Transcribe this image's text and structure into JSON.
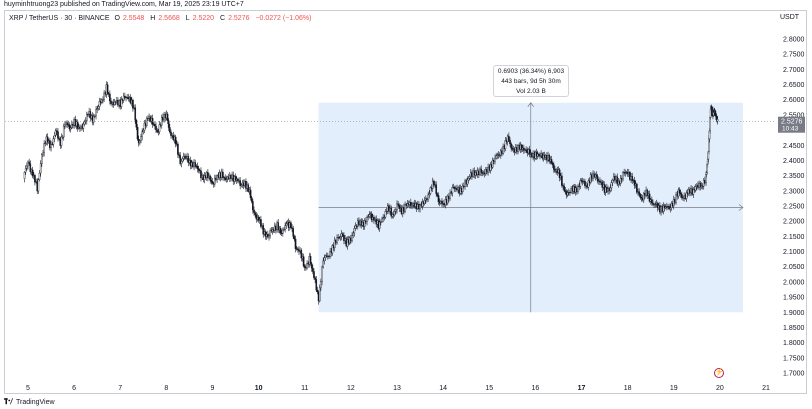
{
  "header": {
    "publish_line": "huyminhtruong23 published on TradingView.com, Mar 19, 2025 23:19 UTC+7"
  },
  "legend": {
    "symbol": "XRP / TetherUS · 30 · BINANCE",
    "open_key": "O",
    "open_val": "2.5548",
    "high_key": "H",
    "high_val": "2.5668",
    "low_key": "L",
    "low_val": "2.5220",
    "close_key": "C",
    "close_val": "2.5276",
    "change": "−0.0272 (−1.06%)"
  },
  "currency": "USDT",
  "measure_box": {
    "line1": "0.6903 (36.34%) 6,903",
    "line2": "443 bars, 9d 5h 30m",
    "line3": "Vol 2.03 B"
  },
  "price_tag": {
    "price": "2.5276",
    "countdown": "10:43"
  },
  "footer": {
    "brand": "TradingView"
  },
  "colors": {
    "up": "#131722",
    "down": "#131722",
    "measure_fill": "#e3eefc",
    "axis_text": "#131722",
    "price_tag_bg": "#787b86"
  },
  "chart_data": {
    "type": "candlestick",
    "symbol": "XRP / TetherUS",
    "interval": "30",
    "exchange": "BINANCE",
    "y_ticks": [
      "2.8000",
      "2.7500",
      "2.7000",
      "2.6500",
      "2.6000",
      "2.5500",
      "2.5000",
      "2.4500",
      "2.4000",
      "2.3500",
      "2.3000",
      "2.2500",
      "2.2000",
      "2.1500",
      "2.1000",
      "2.0500",
      "2.0000",
      "1.9500",
      "1.9000",
      "1.8500",
      "1.8000",
      "1.7500",
      "1.7000"
    ],
    "ylim": [
      1.68,
      2.83
    ],
    "x_ticks": [
      "5",
      "6",
      "7",
      "8",
      "9",
      "10",
      "11",
      "12",
      "13",
      "14",
      "15",
      "16",
      "17",
      "18",
      "19",
      "20",
      "21"
    ],
    "xlim": [
      4.85,
      21.2
    ],
    "bold_x_ticks": [
      "10",
      "17"
    ],
    "price_path": [
      [
        4.9,
        2.34
      ],
      [
        5.0,
        2.4
      ],
      [
        5.1,
        2.35
      ],
      [
        5.2,
        2.31
      ],
      [
        5.3,
        2.42
      ],
      [
        5.4,
        2.47
      ],
      [
        5.5,
        2.45
      ],
      [
        5.6,
        2.49
      ],
      [
        5.7,
        2.46
      ],
      [
        5.8,
        2.52
      ],
      [
        5.9,
        2.51
      ],
      [
        6.0,
        2.53
      ],
      [
        6.1,
        2.5
      ],
      [
        6.2,
        2.52
      ],
      [
        6.3,
        2.55
      ],
      [
        6.4,
        2.54
      ],
      [
        6.5,
        2.57
      ],
      [
        6.6,
        2.6
      ],
      [
        6.7,
        2.64
      ],
      [
        6.8,
        2.58
      ],
      [
        6.9,
        2.6
      ],
      [
        7.0,
        2.58
      ],
      [
        7.1,
        2.62
      ],
      [
        7.2,
        2.6
      ],
      [
        7.3,
        2.57
      ],
      [
        7.4,
        2.45
      ],
      [
        7.5,
        2.5
      ],
      [
        7.6,
        2.55
      ],
      [
        7.7,
        2.52
      ],
      [
        7.8,
        2.5
      ],
      [
        7.9,
        2.53
      ],
      [
        8.0,
        2.55
      ],
      [
        8.1,
        2.48
      ],
      [
        8.2,
        2.46
      ],
      [
        8.3,
        2.4
      ],
      [
        8.4,
        2.41
      ],
      [
        8.5,
        2.4
      ],
      [
        8.6,
        2.38
      ],
      [
        8.7,
        2.37
      ],
      [
        8.8,
        2.34
      ],
      [
        8.9,
        2.35
      ],
      [
        9.0,
        2.33
      ],
      [
        9.1,
        2.34
      ],
      [
        9.2,
        2.36
      ],
      [
        9.3,
        2.33
      ],
      [
        9.4,
        2.35
      ],
      [
        9.5,
        2.34
      ],
      [
        9.6,
        2.32
      ],
      [
        9.7,
        2.33
      ],
      [
        9.8,
        2.29
      ],
      [
        9.9,
        2.23
      ],
      [
        10.0,
        2.2
      ],
      [
        10.1,
        2.17
      ],
      [
        10.2,
        2.15
      ],
      [
        10.3,
        2.17
      ],
      [
        10.4,
        2.19
      ],
      [
        10.5,
        2.15
      ],
      [
        10.6,
        2.2
      ],
      [
        10.7,
        2.18
      ],
      [
        10.8,
        2.12
      ],
      [
        10.9,
        2.1
      ],
      [
        11.0,
        2.04
      ],
      [
        11.1,
        2.08
      ],
      [
        11.2,
        2.01
      ],
      [
        11.3,
        1.95
      ],
      [
        11.4,
        2.07
      ],
      [
        11.5,
        2.09
      ],
      [
        11.6,
        2.11
      ],
      [
        11.7,
        2.14
      ],
      [
        11.8,
        2.16
      ],
      [
        11.9,
        2.12
      ],
      [
        12.0,
        2.15
      ],
      [
        12.1,
        2.18
      ],
      [
        12.2,
        2.2
      ],
      [
        12.3,
        2.19
      ],
      [
        12.4,
        2.22
      ],
      [
        12.5,
        2.21
      ],
      [
        12.6,
        2.18
      ],
      [
        12.7,
        2.22
      ],
      [
        12.8,
        2.24
      ],
      [
        12.9,
        2.22
      ],
      [
        13.0,
        2.25
      ],
      [
        13.1,
        2.23
      ],
      [
        13.2,
        2.26
      ],
      [
        13.3,
        2.25
      ],
      [
        13.4,
        2.26
      ],
      [
        13.5,
        2.24
      ],
      [
        13.6,
        2.27
      ],
      [
        13.7,
        2.29
      ],
      [
        13.8,
        2.33
      ],
      [
        13.9,
        2.27
      ],
      [
        14.0,
        2.25
      ],
      [
        14.1,
        2.28
      ],
      [
        14.2,
        2.3
      ],
      [
        14.3,
        2.31
      ],
      [
        14.4,
        2.3
      ],
      [
        14.5,
        2.33
      ],
      [
        14.6,
        2.36
      ],
      [
        14.7,
        2.35
      ],
      [
        14.8,
        2.37
      ],
      [
        14.9,
        2.35
      ],
      [
        15.0,
        2.38
      ],
      [
        15.1,
        2.4
      ],
      [
        15.2,
        2.42
      ],
      [
        15.3,
        2.44
      ],
      [
        15.4,
        2.47
      ],
      [
        15.5,
        2.44
      ],
      [
        15.6,
        2.43
      ],
      [
        15.7,
        2.45
      ],
      [
        15.8,
        2.43
      ],
      [
        15.9,
        2.42
      ],
      [
        16.0,
        2.42
      ],
      [
        16.1,
        2.41
      ],
      [
        16.2,
        2.42
      ],
      [
        16.3,
        2.4
      ],
      [
        16.4,
        2.38
      ],
      [
        16.5,
        2.36
      ],
      [
        16.6,
        2.31
      ],
      [
        16.7,
        2.29
      ],
      [
        16.8,
        2.3
      ],
      [
        16.9,
        2.31
      ],
      [
        17.0,
        2.33
      ],
      [
        17.1,
        2.32
      ],
      [
        17.2,
        2.34
      ],
      [
        17.3,
        2.35
      ],
      [
        17.4,
        2.33
      ],
      [
        17.5,
        2.3
      ],
      [
        17.6,
        2.31
      ],
      [
        17.7,
        2.34
      ],
      [
        17.8,
        2.33
      ],
      [
        17.9,
        2.35
      ],
      [
        18.0,
        2.36
      ],
      [
        18.1,
        2.34
      ],
      [
        18.2,
        2.3
      ],
      [
        18.3,
        2.28
      ],
      [
        18.4,
        2.29
      ],
      [
        18.5,
        2.27
      ],
      [
        18.6,
        2.25
      ],
      [
        18.7,
        2.24
      ],
      [
        18.8,
        2.25
      ],
      [
        18.9,
        2.24
      ],
      [
        19.0,
        2.27
      ],
      [
        19.1,
        2.29
      ],
      [
        19.2,
        2.28
      ],
      [
        19.3,
        2.29
      ],
      [
        19.4,
        2.3
      ],
      [
        19.5,
        2.32
      ],
      [
        19.6,
        2.31
      ],
      [
        19.7,
        2.35
      ],
      [
        19.75,
        2.42
      ],
      [
        19.8,
        2.58
      ],
      [
        19.85,
        2.55
      ],
      [
        19.9,
        2.56
      ],
      [
        19.95,
        2.53
      ]
    ],
    "measure_range": {
      "x_start": 11.3,
      "x_end": 20.5,
      "y_low": 1.9,
      "y_high": 2.59
    },
    "last_price": 2.5276
  }
}
